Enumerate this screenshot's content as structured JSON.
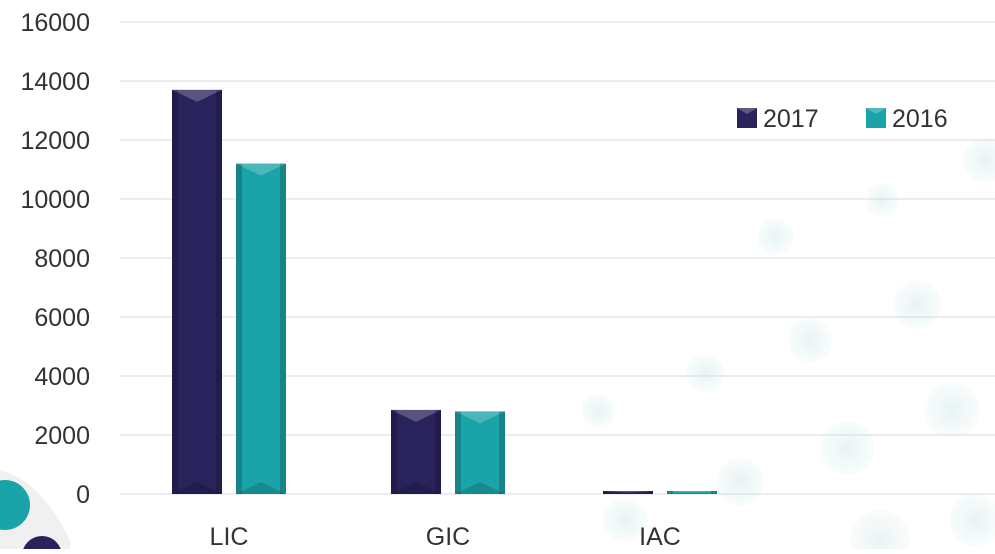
{
  "chart_data": {
    "type": "bar",
    "categories": [
      "LIC",
      "GIC",
      "IAC"
    ],
    "series": [
      {
        "name": "2017",
        "values": [
          13700,
          2850,
          100
        ],
        "color": "#29235c"
      },
      {
        "name": "2016",
        "values": [
          11200,
          2800,
          80
        ],
        "color": "#1aa3a8"
      }
    ],
    "ylim": [
      0,
      16000
    ],
    "yticks": [
      0,
      2000,
      4000,
      6000,
      8000,
      10000,
      12000,
      14000,
      16000
    ],
    "grid": true,
    "legend": "top-right",
    "title": "",
    "xlabel": "",
    "ylabel": ""
  },
  "theme": {
    "grid_color": "#d9d9d9",
    "text_color": "#333333",
    "decor_teal": "#1aa3a8",
    "decor_navy": "#29235c"
  }
}
